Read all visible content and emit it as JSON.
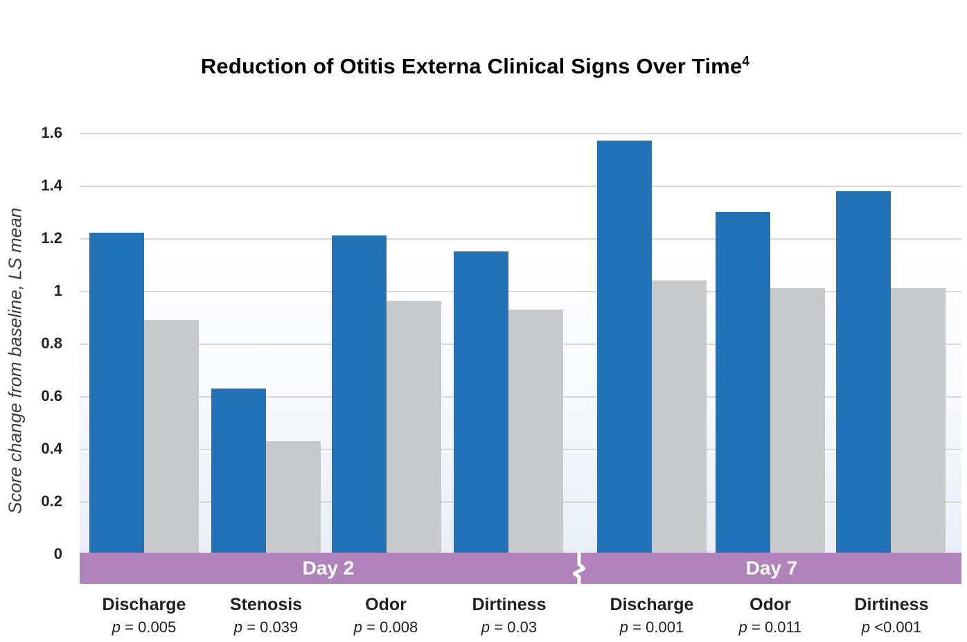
{
  "title": {
    "text": "Reduction of Otitis Externa Clinical Signs Over Time",
    "superscript": "4"
  },
  "y_axis": {
    "label": "Score change from baseline, LS mean",
    "ticks": [
      "1.6",
      "1.4",
      "1.2",
      "1",
      "0.8",
      "0.6",
      "0.4",
      "0.2",
      "0"
    ]
  },
  "day_bands": [
    {
      "label": "Day 2"
    },
    {
      "label": "Day 7"
    }
  ],
  "chart_data": {
    "type": "bar",
    "title": "Reduction of Otitis Externa Clinical Signs Over Time",
    "title_superscript": "4",
    "xlabel": "",
    "ylabel": "Score change from baseline, LS mean",
    "ylim": [
      0,
      1.6
    ],
    "ytick_step": 0.2,
    "grid": true,
    "legend_position": "none",
    "x_axis_break_between": [
      "Day 2",
      "Day 7"
    ],
    "groups": [
      {
        "day": "Day 2",
        "label": "Discharge",
        "p": "= 0.005",
        "blue": 1.22,
        "gray": 0.89
      },
      {
        "day": "Day 2",
        "label": "Stenosis",
        "p": "= 0.039",
        "blue": 0.63,
        "gray": 0.43
      },
      {
        "day": "Day 2",
        "label": "Odor",
        "p": "= 0.008",
        "blue": 1.21,
        "gray": 0.96
      },
      {
        "day": "Day 2",
        "label": "Dirtiness",
        "p": "= 0.03",
        "blue": 1.15,
        "gray": 0.93
      },
      {
        "day": "Day 7",
        "label": "Discharge",
        "p": "= 0.001",
        "blue": 1.57,
        "gray": 1.04
      },
      {
        "day": "Day 7",
        "label": "Odor",
        "p": "= 0.011",
        "blue": 1.3,
        "gray": 1.01
      },
      {
        "day": "Day 7",
        "label": "Dirtiness",
        "p": "<0.001",
        "blue": 1.38,
        "gray": 1.01
      }
    ],
    "series": [
      {
        "name": "blue",
        "color": "#2272b8",
        "values": [
          1.22,
          0.63,
          1.21,
          1.15,
          1.57,
          1.3,
          1.38
        ]
      },
      {
        "name": "gray",
        "color": "#c8c9cb",
        "values": [
          0.89,
          0.43,
          0.96,
          0.93,
          1.04,
          1.01,
          1.01
        ]
      }
    ],
    "colors": {
      "blue_bar": "#2272b8",
      "gray_bar": "#c8c9cb",
      "day_band": "#b083ba",
      "gridline": "#d7d7d7",
      "text": "#231f20"
    }
  }
}
